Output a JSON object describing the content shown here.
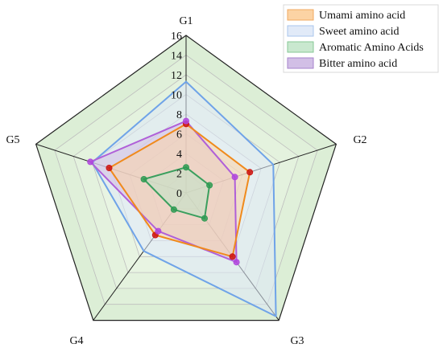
{
  "chart_data": {
    "type": "radar",
    "axes": [
      "G1",
      "G2",
      "G3",
      "G4",
      "G5"
    ],
    "rlim": [
      0,
      16
    ],
    "ticks": [
      0,
      2,
      4,
      6,
      8,
      10,
      12,
      14,
      16
    ],
    "tick_labels": [
      "0",
      "2",
      "4",
      "6",
      "8",
      "10",
      "12",
      "14",
      "16"
    ],
    "grid": true,
    "legend_position": "top-right",
    "series": [
      {
        "name": "Umami amino acid",
        "values": [
          7.0,
          6.8,
          8.0,
          5.3,
          8.2
        ],
        "line_color": "#f08a1c",
        "fill_color": "#fbd3a6"
      },
      {
        "name": "Sweet amino acid",
        "values": [
          11.3,
          9.3,
          15.5,
          7.3,
          10.0
        ],
        "line_color": "#6fa3e8",
        "fill_color": "#dce8f8"
      },
      {
        "name": "Aromatic Amino Acids",
        "values": [
          2.6,
          2.5,
          3.2,
          2.1,
          4.5
        ],
        "line_color": "#3a9f5e",
        "fill_color": "#bfe3c8"
      },
      {
        "name": "Bitter amino acid",
        "values": [
          7.3,
          5.2,
          8.7,
          4.8,
          10.2
        ],
        "line_color": "#b060d8",
        "fill_color": "#d4bee6"
      }
    ],
    "markers": [
      {
        "series": "Umami amino acid",
        "color": "#cc1111",
        "values": [
          7.0,
          6.8,
          8.0,
          5.3,
          8.2
        ]
      },
      {
        "series": "Bitter amino acid",
        "color": "#b045dd",
        "values": [
          7.3,
          5.2,
          8.7,
          4.8,
          10.2
        ]
      },
      {
        "series": "Aromatic Amino Acids",
        "color": "#2e9a52",
        "values": [
          2.6,
          2.5,
          3.2,
          2.1,
          4.5
        ]
      }
    ],
    "ring_colors": [
      "#ffffff",
      "#f8fbf6",
      "#f2f8ee",
      "#edf6e8",
      "#e8f4e2",
      "#e4f2de",
      "#e0f0da",
      "#dceed6"
    ]
  }
}
